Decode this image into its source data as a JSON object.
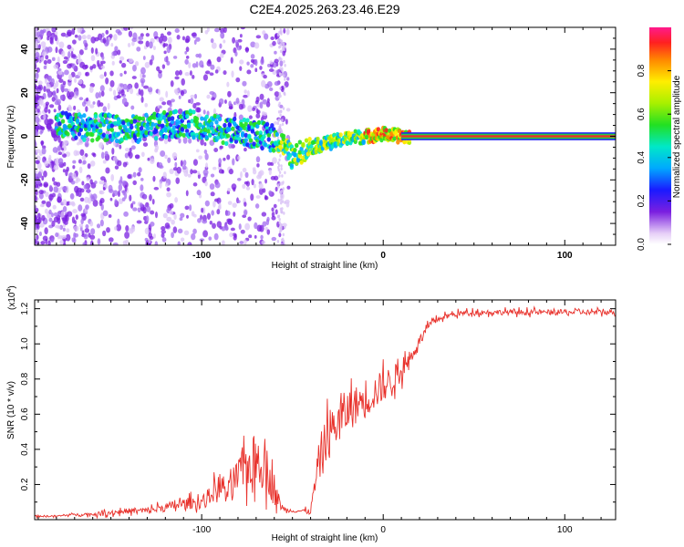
{
  "title": "C2E4.2025.263.23.46.E29",
  "colors": {
    "background": "#ffffff",
    "axis": "#000000",
    "snr_line": "#e8302a",
    "spec_ridge": "#e8302a",
    "spec_band": "#2ecc40"
  },
  "chart_data": [
    {
      "type": "heatmap",
      "name": "spectrogram",
      "xlabel": "Height of straight line (km)",
      "ylabel": "Frequency (Hz)",
      "xlim": [
        -192,
        128
      ],
      "ylim": [
        -50,
        50
      ],
      "x_ticks": [
        -100,
        0,
        100
      ],
      "x_tick_labels": [
        "-100",
        "0",
        "100"
      ],
      "y_ticks": [
        -40,
        -20,
        0,
        20,
        40
      ],
      "y_tick_labels": [
        "-40",
        "-20",
        "0",
        "20",
        "40"
      ],
      "ridge_frequency_hz": [
        [
          -175,
          5
        ],
        [
          -160,
          4
        ],
        [
          -150,
          4
        ],
        [
          -140,
          3
        ],
        [
          -130,
          4
        ],
        [
          -120,
          5
        ],
        [
          -110,
          6
        ],
        [
          -100,
          5
        ],
        [
          -90,
          3
        ],
        [
          -80,
          2
        ],
        [
          -70,
          1
        ],
        [
          -60,
          -1
        ],
        [
          -55,
          -4
        ],
        [
          -50,
          -10
        ],
        [
          -45,
          -7
        ],
        [
          -40,
          -5
        ],
        [
          -35,
          -4
        ],
        [
          -30,
          -3
        ],
        [
          -25,
          -2
        ],
        [
          -20,
          -1
        ],
        [
          -10,
          0
        ],
        [
          0,
          1
        ],
        [
          10,
          0
        ],
        [
          128,
          0
        ]
      ],
      "colorbar": {
        "label": "Normalized spectral amplitude",
        "range": [
          0,
          1
        ],
        "ticks": [
          0.0,
          0.2,
          0.4,
          0.6,
          0.8
        ],
        "tick_labels": [
          "0.0",
          "0.2",
          "0.4",
          "0.6",
          "0.8"
        ],
        "stops": [
          {
            "v": 0.0,
            "color": "#ffffff"
          },
          {
            "v": 0.05,
            "color": "#e6cff7"
          },
          {
            "v": 0.15,
            "color": "#7a1fe0"
          },
          {
            "v": 0.25,
            "color": "#1a1aff"
          },
          {
            "v": 0.35,
            "color": "#00a8ff"
          },
          {
            "v": 0.45,
            "color": "#00e8c8"
          },
          {
            "v": 0.55,
            "color": "#22e022"
          },
          {
            "v": 0.65,
            "color": "#a8f000"
          },
          {
            "v": 0.75,
            "color": "#ffee00"
          },
          {
            "v": 0.85,
            "color": "#ff8800"
          },
          {
            "v": 0.93,
            "color": "#ff2020"
          },
          {
            "v": 1.0,
            "color": "#ff1a8c"
          }
        ]
      }
    },
    {
      "type": "line",
      "name": "snr",
      "xlabel": "Height of straight line (km)",
      "ylabel": "SNR (10 * v/v)",
      "multiplier_label": "(x10",
      "multiplier_exponent": "4",
      "multiplier_close": ")",
      "xlim": [
        -192,
        128
      ],
      "ylim": [
        0,
        1.25
      ],
      "x_ticks": [
        -100,
        0,
        100
      ],
      "x_tick_labels": [
        "-100",
        "0",
        "100"
      ],
      "y_ticks": [
        0.2,
        0.4,
        0.6,
        0.8,
        1.0,
        1.2
      ],
      "y_tick_labels": [
        "0.2",
        "0.4",
        "0.6",
        "0.8",
        "1.0",
        "1.2"
      ],
      "series": [
        {
          "name": "SNR",
          "x": [
            -192,
            -180,
            -170,
            -160,
            -150,
            -140,
            -130,
            -120,
            -110,
            -100,
            -95,
            -90,
            -85,
            -80,
            -75,
            -70,
            -65,
            -60,
            -55,
            -50,
            -45,
            -40,
            -35,
            -30,
            -25,
            -20,
            -15,
            -10,
            -5,
            0,
            5,
            10,
            15,
            20,
            25,
            30,
            35,
            40,
            50,
            60,
            80,
            100,
            120,
            128
          ],
          "values": [
            0.02,
            0.02,
            0.03,
            0.03,
            0.04,
            0.05,
            0.05,
            0.07,
            0.09,
            0.1,
            0.14,
            0.2,
            0.15,
            0.25,
            0.3,
            0.35,
            0.32,
            0.15,
            0.06,
            0.05,
            0.05,
            0.05,
            0.35,
            0.5,
            0.55,
            0.62,
            0.65,
            0.7,
            0.72,
            0.76,
            0.8,
            0.85,
            0.92,
            1.02,
            1.1,
            1.14,
            1.16,
            1.17,
            1.18,
            1.18,
            1.18,
            1.18,
            1.18,
            1.18
          ],
          "noise_amplitude": [
            0.01,
            0.01,
            0.01,
            0.02,
            0.03,
            0.03,
            0.04,
            0.05,
            0.06,
            0.08,
            0.1,
            0.15,
            0.15,
            0.2,
            0.25,
            0.3,
            0.28,
            0.15,
            0.03,
            0.02,
            0.02,
            0.03,
            0.25,
            0.25,
            0.25,
            0.25,
            0.22,
            0.22,
            0.2,
            0.18,
            0.15,
            0.12,
            0.08,
            0.05,
            0.04,
            0.03,
            0.03,
            0.03,
            0.03,
            0.03,
            0.03,
            0.03,
            0.03,
            0.03
          ]
        }
      ]
    }
  ]
}
